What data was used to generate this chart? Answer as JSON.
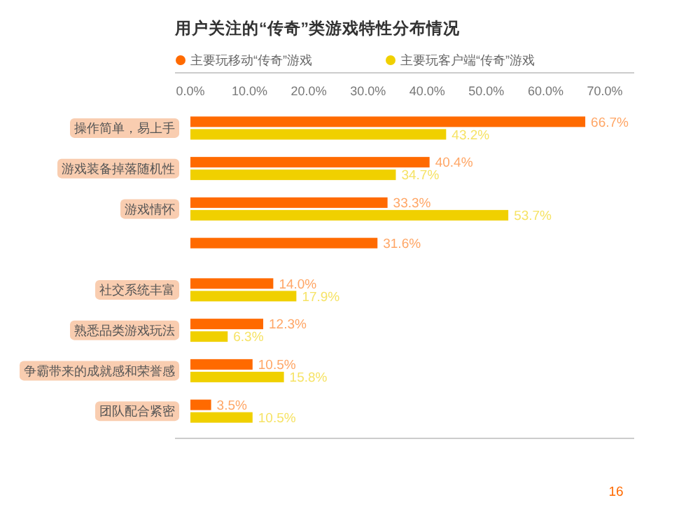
{
  "chart_data": {
    "type": "bar",
    "orientation": "horizontal",
    "title": "用户关注的“传奇”类游戏特性分布情况",
    "categories": [
      "操作简单，易上手",
      "游戏装备掉落随机性",
      "游戏情怀",
      null,
      "社交系统丰富",
      "熟悉品类游戏玩法",
      "争霸带来的成就感和荣誉感",
      "团队配合紧密"
    ],
    "series": [
      {
        "name": "主要玩移动“传奇”游戏",
        "color": "#ff6a00",
        "values": [
          66.7,
          40.4,
          33.3,
          31.6,
          14.0,
          12.3,
          10.5,
          3.5
        ],
        "value_labels": [
          "66.7%",
          "40.4%",
          "33.3%",
          "31.6%",
          "14.0%",
          "12.3%",
          "10.5%",
          "3.5%"
        ]
      },
      {
        "name": "主要玩客户端“传奇”游戏",
        "color": "#f0d000",
        "values": [
          43.2,
          34.7,
          53.7,
          null,
          17.9,
          6.3,
          15.8,
          10.5
        ],
        "value_labels": [
          "43.2%",
          "34.7%",
          "53.7%",
          null,
          "17.9%",
          "6.3%",
          "15.8%",
          "10.5%"
        ]
      }
    ],
    "xlim": [
      0,
      70
    ],
    "xticks": [
      {
        "value": 0,
        "label": "0.0%"
      },
      {
        "value": 10,
        "label": "10.0%"
      },
      {
        "value": 20,
        "label": "20.0%"
      },
      {
        "value": 30,
        "label": "30.0%"
      },
      {
        "value": 40,
        "label": "40.0%"
      },
      {
        "value": 50,
        "label": "50.0%"
      },
      {
        "value": 60,
        "label": "60.0%"
      },
      {
        "value": 70,
        "label": "70.0%"
      }
    ],
    "legend": "top left",
    "grid": false,
    "annotations": [
      "16"
    ]
  }
}
